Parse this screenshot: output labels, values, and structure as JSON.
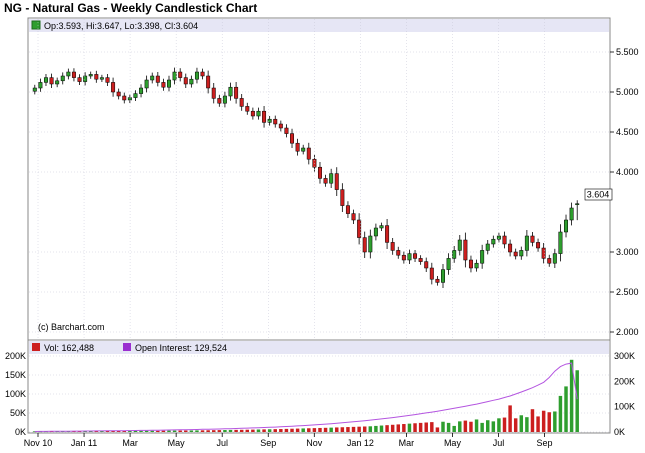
{
  "title": "NG - Natural Gas - Weekly Candlestick Chart",
  "watermark": "(c) Barchart.com",
  "colors": {
    "up": "#2e9e2e",
    "down": "#cc1f1f",
    "oi": "#b455e0",
    "panel_header": "#e6e6f5",
    "grid": "#c8c8d8"
  },
  "price_legend": {
    "ohlc": "Op:3.593, Hi:3.647, Lo:3.398, Cl:3.604"
  },
  "volume_legend": {
    "vol": "Vol: 162,488",
    "oi": "Open Interest: 129,524"
  },
  "chart_data": [
    {
      "type": "candlestick",
      "title": "NG - Natural Gas - Weekly Candlestick Chart",
      "ylim": [
        1.9,
        5.7
      ],
      "y_ticks": [
        "5.500",
        "5.000",
        "4.500",
        "4.000",
        "3.000",
        "2.500",
        "2.000"
      ],
      "last_price_label": "3.604",
      "x_ticks": [
        "Nov 10",
        "Jan 11",
        "Mar",
        "May",
        "Jul",
        "Sep",
        "Nov",
        "Jan 12",
        "Mar",
        "May",
        "Jul",
        "Sep"
      ],
      "last_bar": {
        "open": 3.593,
        "high": 3.647,
        "low": 3.398,
        "close": 3.604
      },
      "series": [
        {
          "closes": [
            5.05,
            5.12,
            5.18,
            5.1,
            5.14,
            5.2,
            5.25,
            5.18,
            5.13,
            5.2,
            5.22,
            5.16,
            5.18,
            5.12,
            5.0,
            4.95,
            4.9,
            4.93,
            4.98,
            5.05,
            5.15,
            5.2,
            5.12,
            5.06,
            5.15,
            5.25,
            5.18,
            5.1,
            5.16,
            5.25,
            5.2,
            5.05,
            4.92,
            4.86,
            4.95,
            5.06,
            4.92,
            4.82,
            4.76,
            4.7,
            4.76,
            4.62,
            4.66,
            4.6,
            4.55,
            4.48,
            4.36,
            4.26,
            4.3,
            4.16,
            4.06,
            3.92,
            3.86,
            3.98,
            3.78,
            3.58,
            3.48,
            3.4,
            3.18,
            3.0,
            3.2,
            3.3,
            3.33,
            3.12,
            3.02,
            2.96,
            2.9,
            2.98,
            2.92,
            2.88,
            2.8,
            2.66,
            2.62,
            2.78,
            2.92,
            3.02,
            3.15,
            2.9,
            2.8,
            2.86,
            3.02,
            3.1,
            3.16,
            3.2,
            3.1,
            3.0,
            2.95,
            3.02,
            3.2,
            3.12,
            3.05,
            2.92,
            2.86,
            2.98,
            3.25,
            3.4,
            3.55,
            3.6
          ]
        }
      ]
    },
    {
      "type": "bar+line",
      "ylim_left": [
        0,
        200000
      ],
      "ylim_right": [
        0,
        300000
      ],
      "y_ticks_left": [
        "200K",
        "150K",
        "100K",
        "50K",
        "0K"
      ],
      "y_ticks_right": [
        "300K",
        "200K",
        "100K",
        "0K"
      ],
      "series": [
        {
          "name": "Vol",
          "values": [
            1800,
            1900,
            2000,
            2100,
            2200,
            2100,
            2300,
            2400,
            2200,
            2500,
            2600,
            2400,
            2700,
            2800,
            2600,
            2900,
            3000,
            3100,
            2900,
            3200,
            3300,
            3400,
            3100,
            3500,
            3600,
            3700,
            3800,
            3900,
            4000,
            4200,
            4400,
            4600,
            4800,
            5000,
            5200,
            5400,
            5600,
            5800,
            6000,
            6300,
            6600,
            6900,
            7200,
            7500,
            7800,
            8200,
            8600,
            9000,
            9400,
            9800,
            10200,
            10600,
            11000,
            11500,
            12000,
            12500,
            13000,
            13500,
            14000,
            14500,
            15000,
            16000,
            17000,
            18000,
            19000,
            20000,
            21000,
            22000,
            23000,
            24000,
            25000,
            26000,
            12000,
            27000,
            24000,
            16000,
            28000,
            30000,
            27000,
            33000,
            24000,
            31000,
            28000,
            36000,
            38000,
            70000,
            36000,
            44000,
            39000,
            60000,
            41000,
            56000,
            52000,
            54000,
            95000,
            120000,
            190000,
            162488
          ]
        },
        {
          "name": "Open Interest",
          "values": [
            2000,
            2200,
            2400,
            2600,
            2800,
            3000,
            3200,
            3400,
            3600,
            3800,
            4000,
            4200,
            4400,
            4600,
            4800,
            5000,
            5300,
            5600,
            5900,
            6200,
            6500,
            6800,
            7100,
            7500,
            7900,
            8300,
            8700,
            9100,
            9500,
            10000,
            10500,
            11000,
            11500,
            12000,
            12600,
            13200,
            13800,
            14500,
            15200,
            16000,
            16800,
            17600,
            18500,
            19500,
            20500,
            21600,
            22700,
            24000,
            25300,
            26700,
            28100,
            29600,
            31200,
            32800,
            34500,
            36300,
            38200,
            40200,
            42300,
            44500,
            46800,
            49200,
            51700,
            54300,
            57000,
            59800,
            62700,
            65700,
            68800,
            72000,
            75300,
            78700,
            82200,
            86000,
            90000,
            94000,
            98000,
            102000,
            106000,
            110000,
            115000,
            120000,
            125000,
            130000,
            136000,
            142000,
            150000,
            158000,
            166000,
            175000,
            185000,
            196000,
            215000,
            240000,
            258000,
            268000,
            272000,
            129524
          ]
        }
      ]
    }
  ]
}
